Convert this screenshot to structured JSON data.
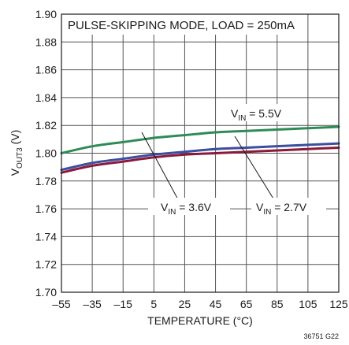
{
  "chart_data": {
    "type": "line",
    "title": "PULSE-SKIPPING MODE, LOAD = 250mA",
    "xlabel": "TEMPERATURE (°C)",
    "ylabel": {
      "main": "V",
      "sub": "OUT3",
      "unit": " (V)"
    },
    "xlim": [
      -55,
      125
    ],
    "ylim": [
      1.7,
      1.9
    ],
    "x_ticks": [
      -55,
      -35,
      -15,
      5,
      25,
      45,
      65,
      85,
      105,
      125
    ],
    "x_tick_labels": [
      "–55",
      "–35",
      "–15",
      "5",
      "25",
      "45",
      "65",
      "85",
      "105",
      "125"
    ],
    "y_ticks": [
      1.7,
      1.72,
      1.74,
      1.76,
      1.78,
      1.8,
      1.82,
      1.84,
      1.86,
      1.88,
      1.9
    ],
    "y_tick_labels": [
      "1.70",
      "1.72",
      "1.74",
      "1.76",
      "1.78",
      "1.80",
      "1.82",
      "1.84",
      "1.86",
      "1.88",
      "1.90"
    ],
    "grid": true,
    "series": [
      {
        "name": "VIN = 5.5V",
        "color": "#2e8b57",
        "x": [
          -55,
          -35,
          -15,
          5,
          25,
          45,
          65,
          85,
          105,
          125
        ],
        "y": [
          1.8,
          1.805,
          1.808,
          1.811,
          1.813,
          1.815,
          1.816,
          1.817,
          1.818,
          1.819
        ]
      },
      {
        "name": "VIN = 3.6V",
        "color": "#3b4ea0",
        "x": [
          -55,
          -35,
          -15,
          5,
          25,
          45,
          65,
          85,
          105,
          125
        ],
        "y": [
          1.788,
          1.793,
          1.796,
          1.799,
          1.801,
          1.803,
          1.804,
          1.805,
          1.806,
          1.807
        ]
      },
      {
        "name": "VIN = 2.7V",
        "color": "#8b1a3a",
        "x": [
          -55,
          -35,
          -15,
          5,
          25,
          45,
          65,
          85,
          105,
          125
        ],
        "y": [
          1.786,
          1.791,
          1.794,
          1.797,
          1.799,
          1.8,
          1.801,
          1.802,
          1.803,
          1.804
        ]
      }
    ],
    "annotations": [
      {
        "main": "V",
        "sub": "IN",
        "rest": " = 5.5V"
      },
      {
        "main": "V",
        "sub": "IN",
        "rest": " = 3.6V"
      },
      {
        "main": "V",
        "sub": "IN",
        "rest": " = 2.7V"
      }
    ],
    "figure_id": "36751 G22"
  }
}
